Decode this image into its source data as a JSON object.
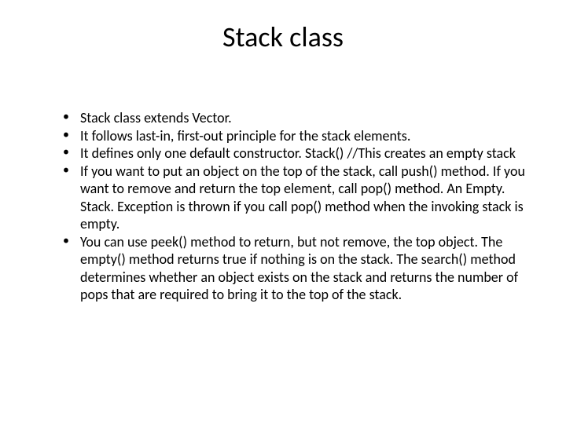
{
  "slide": {
    "title": "Stack class",
    "title_fontsize": 36,
    "body_fontsize": 18,
    "background_color": "#ffffff",
    "text_color": "#000000",
    "bullets": [
      "Stack class extends Vector.",
      "It follows last-in, first-out principle for the stack elements.",
      "It defines only one default constructor. Stack() //This creates an empty stack",
      "If you want to put an object on the top of the stack, call push() method. If you want to remove and return the top element, call pop() method. An Empty. Stack. Exception is thrown if you call pop() method when the invoking stack is empty.",
      "You can use peek() method to return, but not remove, the top object. The empty() method returns true if nothing is on the stack. The search() method determines whether an object exists on the stack and returns the number of pops that are required to bring it to the top of the stack."
    ]
  }
}
